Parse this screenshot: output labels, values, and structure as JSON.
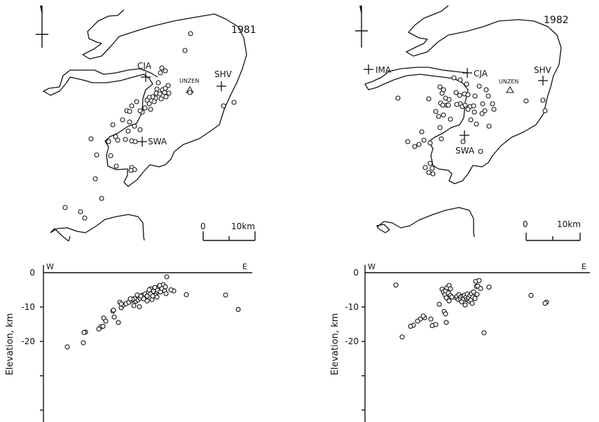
{
  "chart_data": [
    {
      "type": "scatter",
      "panel": "map",
      "year_label": "1981",
      "stations": [
        {
          "name": "CJA"
        },
        {
          "name": "SHV"
        },
        {
          "name": "SWA"
        }
      ],
      "volcano_label": "UNZEN",
      "scale_bar": {
        "start_label": "0",
        "end_label": "10km"
      },
      "epicenters": [
        [
          272,
          48
        ],
        [
          264,
          72
        ],
        [
          231,
          97
        ],
        [
          229,
          104
        ],
        [
          236,
          101
        ],
        [
          226,
          118
        ],
        [
          232,
          128
        ],
        [
          236,
          126
        ],
        [
          240,
          122
        ],
        [
          223,
          133
        ],
        [
          228,
          134
        ],
        [
          235,
          132
        ],
        [
          241,
          133
        ],
        [
          237,
          138
        ],
        [
          230,
          141
        ],
        [
          222,
          140
        ],
        [
          218,
          138
        ],
        [
          213,
          139
        ],
        [
          224,
          127
        ],
        [
          220,
          145
        ],
        [
          210,
          143
        ],
        [
          213,
          148
        ],
        [
          215,
          156
        ],
        [
          207,
          154
        ],
        [
          203,
          160
        ],
        [
          200,
          158
        ],
        [
          195,
          145
        ],
        [
          188,
          151
        ],
        [
          181,
          158
        ],
        [
          175,
          171
        ],
        [
          185,
          174
        ],
        [
          192,
          180
        ],
        [
          185,
          159
        ],
        [
          183,
          187
        ],
        [
          161,
          178
        ],
        [
          165,
          195
        ],
        [
          200,
          185
        ],
        [
          188,
          201
        ],
        [
          193,
          202
        ],
        [
          179,
          199
        ],
        [
          168,
          200
        ],
        [
          155,
          202
        ],
        [
          130,
          198
        ],
        [
          138,
          221
        ],
        [
          158,
          222
        ],
        [
          188,
          239
        ],
        [
          192,
          242
        ],
        [
          187,
          243
        ],
        [
          166,
          237
        ],
        [
          136,
          255
        ],
        [
          145,
          283
        ],
        [
          93,
          296
        ],
        [
          115,
          302
        ],
        [
          121,
          311
        ],
        [
          319,
          151
        ],
        [
          334,
          146
        ],
        [
          271,
          132
        ]
      ]
    },
    {
      "type": "scatter",
      "panel": "map",
      "year_label": "1982",
      "stations": [
        {
          "name": "IMA"
        },
        {
          "name": "CJA"
        },
        {
          "name": "SHV"
        },
        {
          "name": "SWA"
        }
      ],
      "volcano_label": "UNZEN",
      "scale_bar": {
        "start_label": "0",
        "end_label": "10km"
      },
      "epicenters": [
        [
          628,
          124
        ],
        [
          631,
          133
        ],
        [
          633,
          128
        ],
        [
          629,
          147
        ],
        [
          632,
          150
        ],
        [
          638,
          150
        ],
        [
          636,
          140
        ],
        [
          641,
          142
        ],
        [
          651,
          132
        ],
        [
          656,
          136
        ],
        [
          663,
          134
        ],
        [
          668,
          135
        ],
        [
          657,
          148
        ],
        [
          652,
          149
        ],
        [
          660,
          152
        ],
        [
          664,
          150
        ],
        [
          671,
          152
        ],
        [
          676,
          151
        ],
        [
          668,
          156
        ],
        [
          678,
          137
        ],
        [
          666,
          120
        ],
        [
          684,
          123
        ],
        [
          689,
          148
        ],
        [
          694,
          128
        ],
        [
          697,
          137
        ],
        [
          703,
          148
        ],
        [
          705,
          156
        ],
        [
          688,
          162
        ],
        [
          677,
          160
        ],
        [
          672,
          171
        ],
        [
          680,
          177
        ],
        [
          698,
          180
        ],
        [
          692,
          158
        ],
        [
          657,
          114
        ],
        [
          648,
          111
        ],
        [
          643,
          170
        ],
        [
          628,
          182
        ],
        [
          640,
          150
        ],
        [
          622,
          159
        ],
        [
          612,
          141
        ],
        [
          568,
          140
        ],
        [
          626,
          166
        ],
        [
          602,
          188
        ],
        [
          605,
          200
        ],
        [
          614,
          204
        ],
        [
          598,
          206
        ],
        [
          592,
          209
        ],
        [
          582,
          202
        ],
        [
          630,
          198
        ],
        [
          661,
          202
        ],
        [
          686,
          216
        ],
        [
          614,
          233
        ],
        [
          617,
          240
        ],
        [
          607,
          239
        ],
        [
          612,
          246
        ],
        [
          618,
          248
        ],
        [
          751,
          144
        ],
        [
          775,
          143
        ],
        [
          778,
          158
        ],
        [
          633,
          164
        ]
      ]
    },
    {
      "type": "scatter",
      "panel": "cross-section",
      "year_label": "1981",
      "xlabel_left": "W",
      "xlabel_right": "E",
      "ylabel": "Elevation, km",
      "yticks": [
        0,
        -10,
        -20
      ],
      "ylim": [
        -28,
        0
      ],
      "points": [
        [
          173,
          -10.2
        ],
        [
          176,
          -9.4
        ],
        [
          180,
          -9.0
        ],
        [
          184,
          -8.6
        ],
        [
          188,
          -8.1
        ],
        [
          191,
          -9.6
        ],
        [
          194,
          -8.3
        ],
        [
          197,
          -7.9
        ],
        [
          200,
          -7.4
        ],
        [
          203,
          -6.6
        ],
        [
          205,
          -7.2
        ],
        [
          207,
          -6.2
        ],
        [
          210,
          -6.8
        ],
        [
          212,
          -5.7
        ],
        [
          215,
          -4.7
        ],
        [
          215,
          -6.2
        ],
        [
          217,
          -7.8
        ],
        [
          219,
          -5.4
        ],
        [
          221,
          -4.3
        ],
        [
          223,
          -6.1
        ],
        [
          225,
          -5.1
        ],
        [
          227,
          -4.0
        ],
        [
          229,
          -5.6
        ],
        [
          231,
          -4.6
        ],
        [
          233,
          -3.5
        ],
        [
          235,
          -5.3
        ],
        [
          236,
          -4.1
        ],
        [
          228,
          -3.7
        ],
        [
          238,
          -1.2
        ],
        [
          237,
          -6.1
        ],
        [
          222,
          -6.6
        ],
        [
          218,
          -6.8
        ],
        [
          210,
          -8.2
        ],
        [
          205,
          -7.6
        ],
        [
          199,
          -9.9
        ],
        [
          192,
          -7.5
        ],
        [
          189,
          -7.7
        ],
        [
          186,
          -7.6
        ],
        [
          196,
          -6.5
        ],
        [
          201,
          -6.8
        ],
        [
          213,
          -5.0
        ],
        [
          224,
          -7.1
        ],
        [
          171,
          -8.6
        ],
        [
          173,
          -9.1
        ],
        [
          161,
          -11.2
        ],
        [
          163,
          -12.9
        ],
        [
          169,
          -14.5
        ],
        [
          162,
          -10.9
        ],
        [
          148,
          -13.2
        ],
        [
          151,
          -14.1
        ],
        [
          144,
          -15.8
        ],
        [
          147,
          -15.6
        ],
        [
          141,
          -16.4
        ],
        [
          122,
          -17.3
        ],
        [
          120,
          -17.4
        ],
        [
          119,
          -20.4
        ],
        [
          96,
          -21.6
        ],
        [
          248,
          -5.3
        ],
        [
          244,
          -5.0
        ],
        [
          266,
          -6.4
        ],
        [
          322,
          -6.5
        ],
        [
          340,
          -10.7
        ]
      ]
    },
    {
      "type": "scatter",
      "panel": "cross-section",
      "year_label": "1982",
      "xlabel_left": "W",
      "xlabel_right": "E",
      "ylabel": "Elevation, km",
      "yticks": [
        0,
        -10,
        -20
      ],
      "ylim": [
        -28,
        0
      ],
      "points": [
        [
          631,
          -4.8
        ],
        [
          633,
          -5.6
        ],
        [
          635,
          -6.4
        ],
        [
          636,
          -5.3
        ],
        [
          637,
          -7.3
        ],
        [
          638,
          -4.4
        ],
        [
          640,
          -5.9
        ],
        [
          641,
          -3.7
        ],
        [
          641,
          -8.2
        ],
        [
          643,
          -6.6
        ],
        [
          643,
          -4.7
        ],
        [
          645,
          -7.1
        ],
        [
          651,
          -7.3
        ],
        [
          652,
          -6.9
        ],
        [
          654,
          -7.8
        ],
        [
          655,
          -6.4
        ],
        [
          657,
          -7.5
        ],
        [
          658,
          -7.0
        ],
        [
          659,
          -8.5
        ],
        [
          661,
          -6.8
        ],
        [
          662,
          -7.6
        ],
        [
          663,
          -6.6
        ],
        [
          664,
          -9.4
        ],
        [
          665,
          -7.2
        ],
        [
          666,
          -7.8
        ],
        [
          667,
          -6.2
        ],
        [
          668,
          -8.0
        ],
        [
          669,
          -7.3
        ],
        [
          670,
          -8.3
        ],
        [
          671,
          -6.6
        ],
        [
          672,
          -7.9
        ],
        [
          673,
          -6.1
        ],
        [
          674,
          -8.9
        ],
        [
          675,
          -7.1
        ],
        [
          676,
          -5.6
        ],
        [
          678,
          -7.5
        ],
        [
          679,
          -2.5
        ],
        [
          680,
          -4.0
        ],
        [
          681,
          -6.3
        ],
        [
          682,
          -3.9
        ],
        [
          684,
          -2.3
        ],
        [
          686,
          -4.6
        ],
        [
          698,
          -4.2
        ],
        [
          634,
          -11.3
        ],
        [
          636,
          -12.0
        ],
        [
          637,
          -14.5
        ],
        [
          627,
          -9.2
        ],
        [
          615,
          -13.5
        ],
        [
          617,
          -15.4
        ],
        [
          622,
          -15.1
        ],
        [
          606,
          -13.1
        ],
        [
          600,
          -13.5
        ],
        [
          604,
          -12.6
        ],
        [
          596,
          -14.1
        ],
        [
          590,
          -15.3
        ],
        [
          586,
          -15.6
        ],
        [
          574,
          -18.7
        ],
        [
          565,
          -3.6
        ],
        [
          691,
          -17.5
        ],
        [
          758,
          -6.6
        ],
        [
          780,
          -8.6
        ],
        [
          778,
          -8.9
        ]
      ]
    }
  ]
}
